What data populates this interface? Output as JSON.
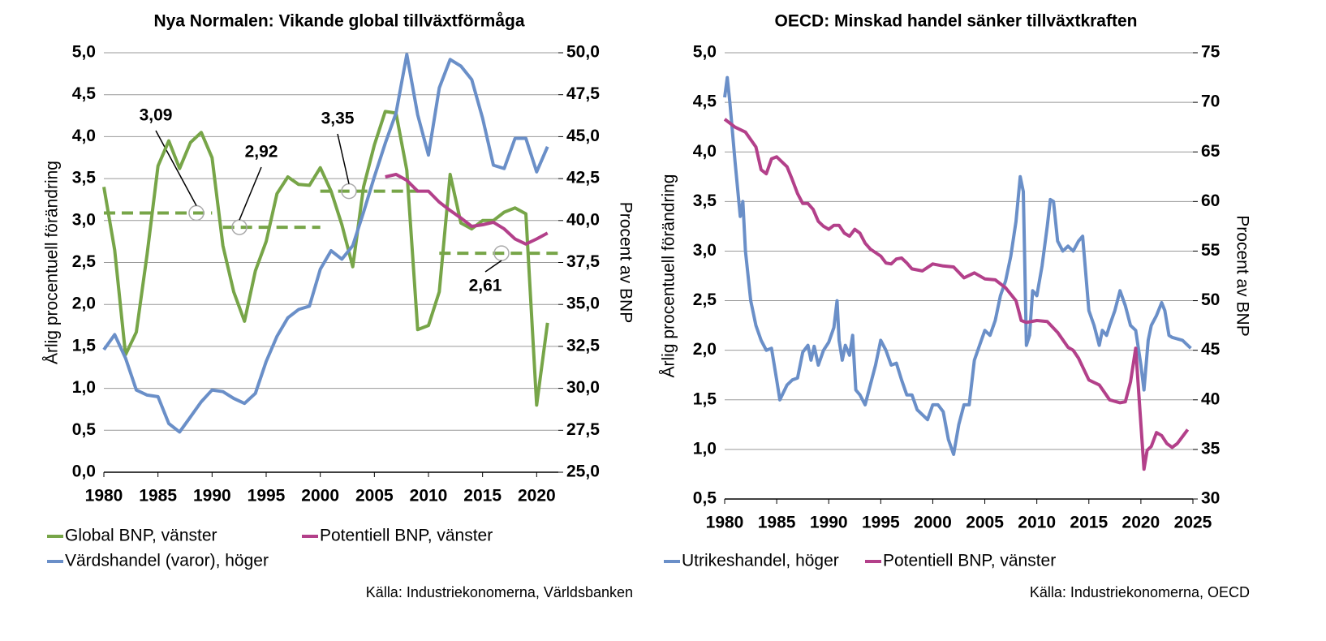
{
  "chart_data": [
    {
      "type": "line",
      "title": "Nya Normalen: Vikande global tillväxtförmåga",
      "ylabel": "Årlig procentuell förändring",
      "y2label": "Procent av BNP",
      "xlim": [
        1980,
        2022
      ],
      "xticks": [
        1980,
        1985,
        1990,
        1995,
        2000,
        2005,
        2010,
        2015,
        2020
      ],
      "ylim": [
        0,
        5
      ],
      "yticks": [
        {
          "value": 0,
          "label": "0,0"
        },
        {
          "value": 0.5,
          "label": "0,5"
        },
        {
          "value": 1,
          "label": "1,0"
        },
        {
          "value": 1.5,
          "label": "1,5"
        },
        {
          "value": 2,
          "label": "2,0"
        },
        {
          "value": 2.5,
          "label": "2,5"
        },
        {
          "value": 3,
          "label": "3,0"
        },
        {
          "value": 3.5,
          "label": "3,5"
        },
        {
          "value": 4,
          "label": "4,0"
        },
        {
          "value": 4.5,
          "label": "4,5"
        },
        {
          "value": 5,
          "label": "5,0"
        }
      ],
      "y2lim": [
        25,
        50
      ],
      "y2ticks": [
        {
          "value": 25,
          "label": "25,0"
        },
        {
          "value": 27.5,
          "label": "27,5"
        },
        {
          "value": 30,
          "label": "30,0"
        },
        {
          "value": 32.5,
          "label": "32,5"
        },
        {
          "value": 35,
          "label": "35,0"
        },
        {
          "value": 37.5,
          "label": "37,5"
        },
        {
          "value": 40,
          "label": "40,0"
        },
        {
          "value": 42.5,
          "label": "42,5"
        },
        {
          "value": 45,
          "label": "45,0"
        },
        {
          "value": 47.5,
          "label": "47,5"
        },
        {
          "value": 50,
          "label": "50,0"
        }
      ],
      "grid": true,
      "series": [
        {
          "name": "Global BNP, vänster",
          "color": "#77a548",
          "axis": "y",
          "x": [
            1980,
            1981,
            1982,
            1983,
            1984,
            1985,
            1986,
            1987,
            1988,
            1989,
            1990,
            1991,
            1992,
            1993,
            1994,
            1995,
            1996,
            1997,
            1998,
            1999,
            2000,
            2001,
            2002,
            2003,
            2004,
            2005,
            2006,
            2007,
            2008,
            2009,
            2010,
            2011,
            2012,
            2013,
            2014,
            2015,
            2016,
            2017,
            2018,
            2019,
            2020,
            2021
          ],
          "values": [
            3.4,
            2.65,
            1.4,
            1.67,
            2.6,
            3.65,
            3.95,
            3.62,
            3.93,
            4.05,
            3.75,
            2.7,
            2.15,
            1.8,
            2.4,
            2.75,
            3.32,
            3.52,
            3.43,
            3.42,
            3.63,
            3.35,
            2.95,
            2.45,
            3.4,
            3.9,
            4.3,
            4.28,
            3.6,
            1.7,
            1.75,
            2.15,
            3.55,
            2.97,
            2.9,
            3.0,
            3.0,
            3.1,
            3.15,
            3.08,
            0.8,
            1.78
          ]
        },
        {
          "name": "Potentiell BNP, vänster",
          "color": "#b3408a",
          "axis": "y",
          "x": [
            2006,
            2007,
            2008,
            2009,
            2010,
            2011,
            2012,
            2013,
            2014,
            2015,
            2016,
            2017,
            2018,
            2019,
            2020,
            2021
          ],
          "values": [
            3.52,
            3.55,
            3.48,
            3.35,
            3.35,
            3.22,
            3.12,
            3.03,
            2.93,
            2.95,
            2.98,
            2.9,
            2.78,
            2.72,
            2.78,
            2.85
          ]
        },
        {
          "name": "Värdshandel (varor), höger",
          "color": "#6a8fc8",
          "axis": "y2",
          "x": [
            1980,
            1981,
            1982,
            1983,
            1984,
            1985,
            1986,
            1987,
            1988,
            1989,
            1990,
            1991,
            1992,
            1993,
            1994,
            1995,
            1996,
            1997,
            1998,
            1999,
            2000,
            2001,
            2002,
            2003,
            2004,
            2005,
            2006,
            2007,
            2008,
            2009,
            2010,
            2011,
            2012,
            2013,
            2014,
            2015,
            2016,
            2017,
            2018,
            2019,
            2020,
            2021
          ],
          "values": [
            32.3,
            33.2,
            31.8,
            29.9,
            29.6,
            29.5,
            27.9,
            27.4,
            28.3,
            29.2,
            29.9,
            29.8,
            29.4,
            29.1,
            29.7,
            31.6,
            33.1,
            34.2,
            34.7,
            34.9,
            37.1,
            38.2,
            37.7,
            38.5,
            40.5,
            42.6,
            44.6,
            46.4,
            49.9,
            46.3,
            43.9,
            47.9,
            49.6,
            49.2,
            48.4,
            46.1,
            43.3,
            43.1,
            44.9,
            44.9,
            42.9,
            44.4
          ]
        }
      ],
      "annotations": [
        {
          "label": "3,09",
          "value": 3.09,
          "x": [
            1980,
            1990
          ]
        },
        {
          "label": "2,92",
          "value": 2.92,
          "x": [
            1991,
            2000
          ]
        },
        {
          "label": "3,35",
          "value": 3.35,
          "x": [
            2000,
            2009
          ]
        },
        {
          "label": "2,61",
          "value": 2.61,
          "x": [
            2011,
            2022
          ]
        }
      ],
      "source": "Källa: Industriekonomerna, Världsbanken"
    },
    {
      "type": "line",
      "title": "OECD: Minskad handel sänker tillväxtkraften",
      "ylabel": "Årlig procentuell förändring",
      "y2label": "Procent av BNP",
      "xlim": [
        1980,
        2025
      ],
      "xticks": [
        1980,
        1985,
        1990,
        1995,
        2000,
        2005,
        2010,
        2015,
        2020,
        2025
      ],
      "ylim": [
        0.5,
        5
      ],
      "yticks": [
        {
          "value": 0.5,
          "label": "0,5"
        },
        {
          "value": 1,
          "label": "1,0"
        },
        {
          "value": 1.5,
          "label": "1,5"
        },
        {
          "value": 2,
          "label": "2,0"
        },
        {
          "value": 2.5,
          "label": "2,5"
        },
        {
          "value": 3,
          "label": "3,0"
        },
        {
          "value": 3.5,
          "label": "3,5"
        },
        {
          "value": 4,
          "label": "4,0"
        },
        {
          "value": 4.5,
          "label": "4,5"
        },
        {
          "value": 5,
          "label": "5,0"
        }
      ],
      "y2lim": [
        30,
        75
      ],
      "y2ticks": [
        30,
        35,
        40,
        45,
        50,
        55,
        60,
        65,
        70,
        75
      ],
      "grid": true,
      "series": [
        {
          "name": "Utrikeshandel, höger",
          "color": "#6a8fc8",
          "axis": "y2",
          "x": [
            1980,
            1980.25,
            1980.5,
            1981,
            1981.5,
            1981.75,
            1982,
            1982.5,
            1983,
            1983.5,
            1984,
            1984.5,
            1985,
            1985.3,
            1986,
            1986.5,
            1987,
            1987.5,
            1988,
            1988.3,
            1988.6,
            1989,
            1989.5,
            1990,
            1990.5,
            1990.8,
            1991,
            1991.3,
            1991.6,
            1992,
            1992.3,
            1992.6,
            1993,
            1993.5,
            1994,
            1994.5,
            1995,
            1995.5,
            1996,
            1996.5,
            1997,
            1997.5,
            1998,
            1998.5,
            1999,
            1999.5,
            2000,
            2000.5,
            2001,
            2001.5,
            2002,
            2002.5,
            2003,
            2003.5,
            2004,
            2004.5,
            2005,
            2005.5,
            2006,
            2006.5,
            2007,
            2007.5,
            2008,
            2008.4,
            2008.7,
            2009,
            2009.3,
            2009.6,
            2010,
            2010.5,
            2011,
            2011.3,
            2011.6,
            2012,
            2012.5,
            2013,
            2013.5,
            2014,
            2014.4,
            2015,
            2015.5,
            2016,
            2016.3,
            2016.7,
            2017,
            2017.5,
            2018,
            2018.5,
            2019,
            2019.5,
            2020,
            2020.3,
            2020.7,
            2021,
            2021.5,
            2022,
            2022.3,
            2022.7,
            2023,
            2024,
            2024.5,
            2024.8
          ],
          "values": [
            70.5,
            72.5,
            70,
            64,
            58.5,
            60,
            55,
            50,
            47.5,
            46,
            45,
            45.2,
            42,
            40,
            41.5,
            42,
            42.2,
            44.8,
            45.5,
            44,
            45.4,
            43.5,
            45,
            45.8,
            47.3,
            50,
            46,
            44,
            45.5,
            44.5,
            46.5,
            41,
            40.5,
            39.5,
            41.5,
            43.5,
            46,
            45,
            43.5,
            43.7,
            42,
            40.5,
            40.5,
            39,
            38.5,
            38,
            39.5,
            39.5,
            38.8,
            36,
            34.5,
            37.5,
            39.5,
            39.5,
            44,
            45.5,
            47,
            46.5,
            48,
            50.5,
            52,
            54.5,
            58,
            62.5,
            61,
            45.5,
            46.5,
            51,
            50.5,
            53.5,
            57.5,
            60.2,
            60,
            56,
            55,
            55.5,
            55,
            56,
            56.5,
            49,
            47.5,
            45.5,
            47,
            46.5,
            47.5,
            49,
            51,
            49.5,
            47.5,
            47,
            43.5,
            41,
            46,
            47.5,
            48.5,
            49.8,
            49,
            46.5,
            46.3,
            46,
            45.5,
            45.2
          ]
        },
        {
          "name": "Potentiell BNP, vänster",
          "color": "#b3408a",
          "axis": "y",
          "x": [
            1980,
            1981,
            1982,
            1983,
            1983.5,
            1984,
            1984.5,
            1985,
            1985.5,
            1986,
            1986.5,
            1987,
            1987.5,
            1988,
            1988.5,
            1989,
            1989.5,
            1990,
            1990.5,
            1991,
            1991.5,
            1992,
            1992.5,
            1993,
            1993.5,
            1994,
            1995,
            1995.5,
            1996,
            1996.5,
            1997,
            1997.5,
            1998,
            1999,
            2000,
            2001,
            2002,
            2003,
            2004,
            2005,
            2006,
            2007,
            2008,
            2008.5,
            2009,
            2010,
            2011,
            2012,
            2013,
            2013.5,
            2014,
            2015,
            2016,
            2017,
            2018,
            2018.5,
            2019,
            2019.5,
            2020.3,
            2020.6,
            2021,
            2021.5,
            2022,
            2022.5,
            2023,
            2023.5,
            2024,
            2024.5
          ],
          "values": [
            4.33,
            4.25,
            4.2,
            4.05,
            3.82,
            3.78,
            3.93,
            3.95,
            3.9,
            3.85,
            3.72,
            3.58,
            3.48,
            3.48,
            3.42,
            3.3,
            3.25,
            3.22,
            3.26,
            3.26,
            3.18,
            3.15,
            3.22,
            3.18,
            3.08,
            3.02,
            2.95,
            2.88,
            2.87,
            2.92,
            2.93,
            2.88,
            2.82,
            2.8,
            2.87,
            2.85,
            2.84,
            2.73,
            2.78,
            2.72,
            2.71,
            2.63,
            2.5,
            2.3,
            2.28,
            2.3,
            2.29,
            2.18,
            2.03,
            2.0,
            1.92,
            1.7,
            1.65,
            1.5,
            1.47,
            1.48,
            1.68,
            2.02,
            0.8,
            0.99,
            1.03,
            1.17,
            1.14,
            1.06,
            1.02,
            1.06,
            1.13,
            1.2
          ]
        }
      ],
      "source": "Källa: Industriekonomerna, OECD"
    }
  ]
}
